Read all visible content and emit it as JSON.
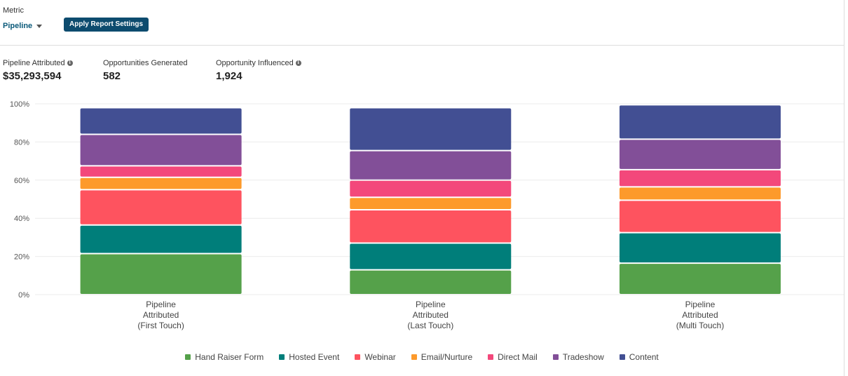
{
  "header": {
    "metric_label": "Metric",
    "metric_value": "Pipeline",
    "apply_button": "Apply Report Settings"
  },
  "stats": [
    {
      "label": "Pipeline Attributed",
      "value": "$35,293,594",
      "has_info": true
    },
    {
      "label": "Opportunities Generated",
      "value": "582",
      "has_info": false
    },
    {
      "label": "Opportunity Influenced",
      "value": "1,924",
      "has_info": true
    }
  ],
  "chart_data": {
    "type": "bar",
    "stacked": true,
    "percent": true,
    "categories": [
      [
        "Pipeline",
        "Attributed",
        "(First Touch)"
      ],
      [
        "Pipeline",
        "Attributed",
        "(Last Touch)"
      ],
      [
        "Pipeline",
        "Attributed",
        "(Multi Touch)"
      ]
    ],
    "series": [
      {
        "name": "Hand Raiser Form",
        "color": "#55a14a",
        "values": [
          21.5,
          13,
          16.5
        ]
      },
      {
        "name": "Hosted Event",
        "color": "#007e7a",
        "values": [
          15,
          14,
          16
        ]
      },
      {
        "name": "Webinar",
        "color": "#fe535f",
        "values": [
          18.5,
          17.5,
          17
        ]
      },
      {
        "name": "Email/Nurture",
        "color": "#fd9a2b",
        "values": [
          6.5,
          6.5,
          7
        ]
      },
      {
        "name": "Direct Mail",
        "color": "#f3487b",
        "values": [
          6,
          9,
          9
        ]
      },
      {
        "name": "Tradeshow",
        "color": "#824f98",
        "values": [
          16.5,
          15.5,
          16
        ]
      },
      {
        "name": "Content",
        "color": "#424f93",
        "values": [
          14,
          22.5,
          18
        ]
      }
    ],
    "y_ticks": [
      "0%",
      "20%",
      "40%",
      "60%",
      "80%",
      "100%"
    ],
    "ylim": [
      0,
      100
    ],
    "grid": true,
    "legend_position": "bottom"
  }
}
